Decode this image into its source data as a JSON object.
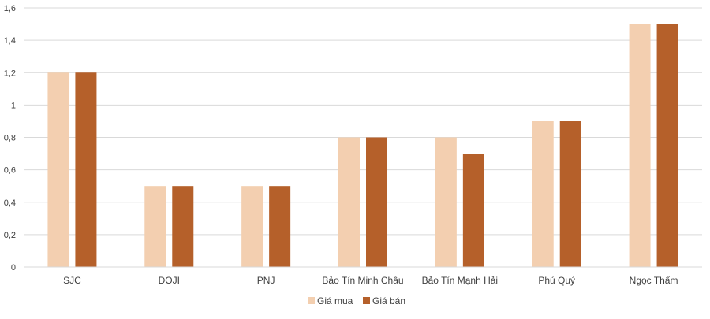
{
  "chart_data": {
    "type": "bar",
    "categories": [
      "SJC",
      "DOJI",
      "PNJ",
      "Bảo Tín Minh Châu",
      "Bảo Tín Mạnh Hải",
      "Phú Quý",
      "Ngọc Thẩm"
    ],
    "series": [
      {
        "name": "Giá mua",
        "values": [
          1.2,
          0.5,
          0.5,
          0.8,
          0.8,
          0.9,
          1.5
        ],
        "color": "#F3CFB0"
      },
      {
        "name": "Giá bán",
        "values": [
          1.2,
          0.5,
          0.5,
          0.8,
          0.7,
          0.9,
          1.5
        ],
        "color": "#B5602A"
      }
    ],
    "yticks": [
      "0",
      "0,2",
      "0,4",
      "0,6",
      "0,8",
      "1",
      "1,2",
      "1,4",
      "1,6"
    ],
    "ylim": [
      0,
      1.6
    ],
    "grid": true,
    "legend_position": "bottom",
    "title": "",
    "xlabel": "",
    "ylabel": ""
  }
}
